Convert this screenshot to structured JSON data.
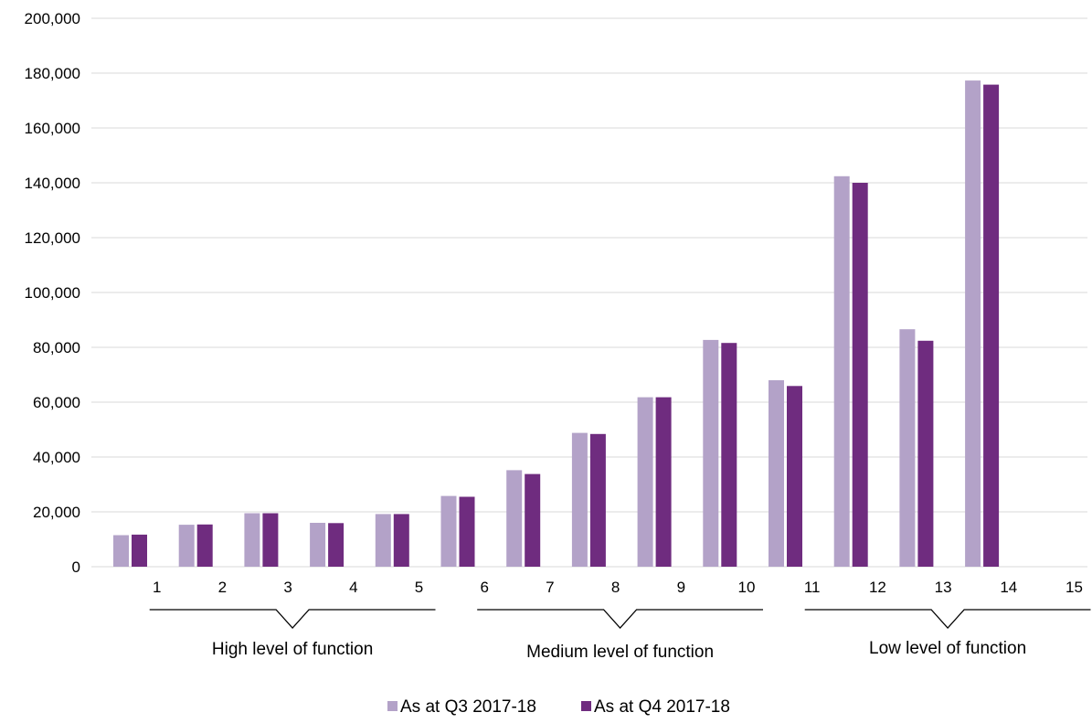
{
  "chart_data": {
    "type": "bar",
    "categories": [
      "1",
      "2",
      "3",
      "4",
      "5",
      "6",
      "7",
      "8",
      "9",
      "10",
      "11",
      "12",
      "13",
      "14",
      "15"
    ],
    "series": [
      {
        "name": "As at Q3 2017-18",
        "color": "#b3a2c8",
        "values": [
          11500,
          15300,
          19500,
          16000,
          19200,
          25800,
          35200,
          48800,
          61800,
          82700,
          68000,
          142400,
          86600,
          177300,
          null
        ]
      },
      {
        "name": "As at Q4 2017-18",
        "color": "#6f2c7f",
        "values": [
          11700,
          15400,
          19500,
          15900,
          19200,
          25500,
          33800,
          48400,
          61800,
          81600,
          65900,
          140000,
          82400,
          175800,
          null
        ]
      }
    ],
    "y_ticks": [
      "0",
      "20,000",
      "40,000",
      "60,000",
      "80,000",
      "100,000",
      "120,000",
      "140,000",
      "160,000",
      "180,000",
      "200,000"
    ],
    "ylim": [
      0,
      200000
    ],
    "grid": true,
    "groups": [
      {
        "label": "High level of function",
        "start": 1,
        "end": 5
      },
      {
        "label": "Medium level of function",
        "start": 6,
        "end": 10
      },
      {
        "label": "Low level of function",
        "start": 11,
        "end": 15
      }
    ],
    "legend_position": "bottom"
  }
}
